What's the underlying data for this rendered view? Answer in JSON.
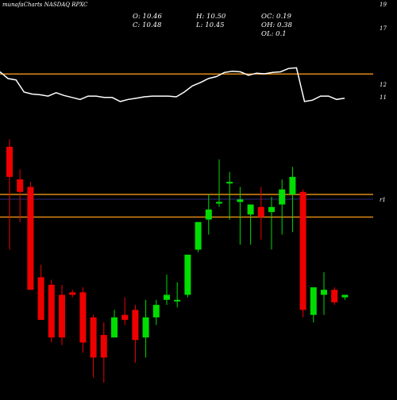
{
  "header": {
    "title": "munafaCharts NASDAQ RPXC",
    "o_label": "O: 10.46",
    "h_label": "H: 10.50",
    "oc_label": "OC: 0.19",
    "c_label": "C: 10.48",
    "l_label": "L: 10.45",
    "oh_label": "OH: 0.38",
    "ol_label": "OL: 0.1"
  },
  "colors": {
    "background": "#000000",
    "up": "#00dd00",
    "down": "#ee0000",
    "reference_line": "#e08a14",
    "indicator": "#ffffff",
    "mid_line": "#2a2a7a"
  },
  "chart_data": {
    "type": "candlestick",
    "title": "munafaCharts NASDAQ RPXC",
    "price_axis_labels": [
      "19",
      "17",
      "12",
      "11",
      "r1"
    ],
    "reference_levels": [
      17.6,
      12.8,
      11.9
    ],
    "ylim": [
      6.0,
      19.6
    ],
    "candles": [
      {
        "o": 14.7,
        "h": 15.0,
        "l": 10.6,
        "c": 13.5
      },
      {
        "o": 13.4,
        "h": 13.8,
        "l": 11.7,
        "c": 12.9
      },
      {
        "o": 13.1,
        "h": 13.3,
        "l": 9.0,
        "c": 9.0
      },
      {
        "o": 9.5,
        "h": 10.0,
        "l": 7.8,
        "c": 7.8
      },
      {
        "o": 9.2,
        "h": 9.4,
        "l": 6.9,
        "c": 7.1
      },
      {
        "o": 8.8,
        "h": 9.2,
        "l": 6.8,
        "c": 7.1
      },
      {
        "o": 8.9,
        "h": 9.0,
        "l": 8.7,
        "c": 8.8
      },
      {
        "o": 8.9,
        "h": 9.1,
        "l": 6.5,
        "c": 6.9
      },
      {
        "o": 7.9,
        "h": 8.0,
        "l": 5.5,
        "c": 6.3
      },
      {
        "o": 7.2,
        "h": 7.7,
        "l": 5.3,
        "c": 6.3
      },
      {
        "o": 7.1,
        "h": 8.2,
        "l": 7.1,
        "c": 7.9
      },
      {
        "o": 8.0,
        "h": 8.7,
        "l": 7.6,
        "c": 7.8
      },
      {
        "o": 8.2,
        "h": 8.4,
        "l": 6.1,
        "c": 7.0
      },
      {
        "o": 7.1,
        "h": 8.6,
        "l": 6.3,
        "c": 7.9
      },
      {
        "o": 7.9,
        "h": 8.6,
        "l": 7.6,
        "c": 8.4
      },
      {
        "o": 8.6,
        "h": 9.6,
        "l": 8.4,
        "c": 8.8
      },
      {
        "o": 8.6,
        "h": 9.3,
        "l": 8.3,
        "c": 8.6
      },
      {
        "o": 8.8,
        "h": 10.4,
        "l": 8.7,
        "c": 10.4
      },
      {
        "o": 10.6,
        "h": 11.7,
        "l": 10.5,
        "c": 11.7
      },
      {
        "o": 11.8,
        "h": 12.8,
        "l": 11.2,
        "c": 12.2
      },
      {
        "o": 12.5,
        "h": 14.2,
        "l": 12.3,
        "c": 12.5
      },
      {
        "o": 13.3,
        "h": 13.7,
        "l": 11.8,
        "c": 13.3
      },
      {
        "o": 12.5,
        "h": 13.1,
        "l": 10.8,
        "c": 12.6
      },
      {
        "o": 12.0,
        "h": 12.3,
        "l": 10.8,
        "c": 12.4
      },
      {
        "o": 12.3,
        "h": 13.1,
        "l": 11.0,
        "c": 11.9
      },
      {
        "o": 12.1,
        "h": 12.7,
        "l": 10.6,
        "c": 12.3
      },
      {
        "o": 12.4,
        "h": 13.4,
        "l": 11.2,
        "c": 13.0
      },
      {
        "o": 12.8,
        "h": 13.9,
        "l": 11.3,
        "c": 13.5
      },
      {
        "o": 12.9,
        "h": 13.0,
        "l": 7.9,
        "c": 8.2
      },
      {
        "o": 8.0,
        "h": 9.0,
        "l": 7.7,
        "c": 9.1
      },
      {
        "o": 8.8,
        "h": 9.7,
        "l": 8.0,
        "c": 9.0
      },
      {
        "o": 9.0,
        "h": 9.1,
        "l": 8.4,
        "c": 8.5
      },
      {
        "o": 8.7,
        "h": 8.8,
        "l": 8.6,
        "c": 8.8
      }
    ],
    "indicator": [
      70,
      60,
      58,
      40,
      37,
      36,
      34,
      39,
      35,
      32,
      29,
      34,
      34,
      32,
      32,
      26,
      29,
      31,
      33,
      34,
      34,
      34,
      33,
      40,
      49,
      54,
      60,
      63,
      69,
      71,
      70,
      65,
      68,
      67,
      69,
      70,
      75,
      76,
      26,
      28,
      34,
      34,
      29,
      31
    ]
  }
}
